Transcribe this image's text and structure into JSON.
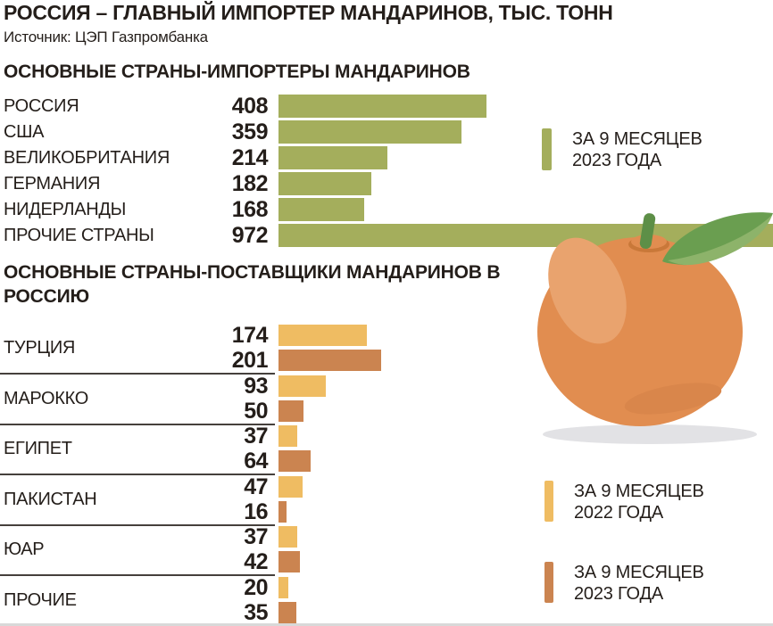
{
  "title": "РОССИЯ – ГЛАВНЫЙ ИМПОРТЕР МАНДАРИНОВ, ТЫС. ТОНН",
  "source": "Источник: ЦЭП Газпромбанка",
  "colors": {
    "text": "#241e1a",
    "olive": "#a4ae5c",
    "orange2022": "#efbc62",
    "orange2023": "#cb8450",
    "divider": "#45403c",
    "fruit_body": "#e18d50",
    "fruit_highlight": "#e9a36e",
    "leaf_dark": "#6a9e50",
    "leaf_light": "#8db36a",
    "stem": "#5d8f47",
    "shadow": "#e2e2e5"
  },
  "chart_data": [
    {
      "type": "bar",
      "orientation": "horizontal",
      "title": "ОСНОВНЫЕ СТРАНЫ-ИМПОРТЕРЫ МАНДАРИНОВ",
      "unit": "тыс. тонн",
      "categories": [
        "РОССИЯ",
        "США",
        "ВЕЛИКОБРИТАНИЯ",
        "ГЕРМАНИЯ",
        "НИДЕРЛАНДЫ",
        "ПРОЧИЕ СТРАНЫ"
      ],
      "values": [
        408,
        359,
        214,
        182,
        168,
        972
      ],
      "bar_color": "#a4ae5c",
      "legend": [
        {
          "label": "ЗА 9 МЕСЯЦЕВ 2023 ГОДА",
          "color": "#a4ae5c"
        }
      ],
      "data_labels": "left-of-bar",
      "grid": false
    },
    {
      "type": "bar",
      "orientation": "horizontal",
      "title": "ОСНОВНЫЕ СТРАНЫ-ПОСТАВЩИКИ МАНДАРИНОВ В РОССИЮ",
      "unit": "тыс. тонн",
      "categories": [
        "ТУРЦИЯ",
        "МАРОККО",
        "ЕГИПЕТ",
        "ПАКИСТАН",
        "ЮАР",
        "ПРОЧИЕ"
      ],
      "series": [
        {
          "name": "ЗА 9 МЕСЯЦЕВ 2022 ГОДА",
          "color": "#efbc62",
          "values": [
            174,
            93,
            37,
            47,
            37,
            20
          ]
        },
        {
          "name": "ЗА 9 МЕСЯЦЕВ 2023 ГОДА",
          "color": "#cb8450",
          "values": [
            201,
            50,
            64,
            16,
            42,
            35
          ]
        }
      ],
      "data_labels": "left-of-bar",
      "grid": false
    }
  ],
  "legends": {
    "importers": {
      "line1": "ЗА 9 МЕСЯЦЕВ",
      "line2": "2023 ГОДА",
      "color": "#a4ae5c"
    },
    "suppliers2022": {
      "line1": "ЗА 9 МЕСЯЦЕВ",
      "line2": "2022 ГОДА",
      "color": "#efbc62"
    },
    "suppliers2023": {
      "line1": "ЗА 9 МЕСЯЦЕВ",
      "line2": "2023 ГОДА",
      "color": "#cb8450"
    }
  },
  "illustration": {
    "name": "mandarin-with-leaf"
  }
}
